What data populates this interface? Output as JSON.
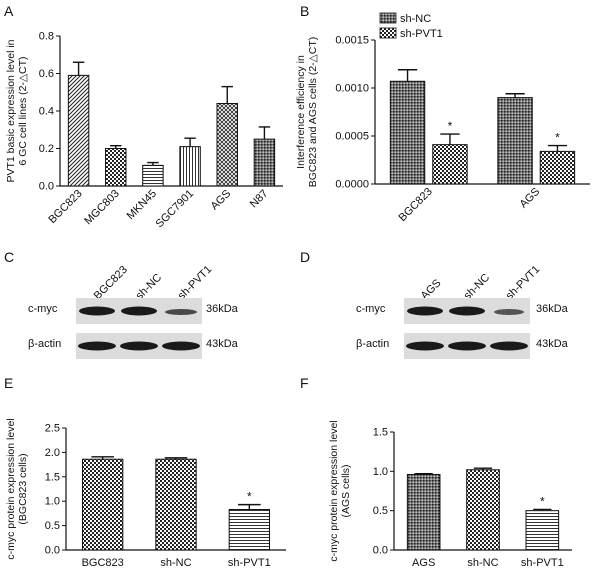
{
  "panels": {
    "a": {
      "letter": "A"
    },
    "b": {
      "letter": "B"
    },
    "c": {
      "letter": "C",
      "lanes": [
        "BGC823",
        "sh-NC",
        "sh-PVT1"
      ],
      "rows": [
        "c-myc",
        "β-actin"
      ],
      "sizes": [
        "36kDa",
        "43kDa"
      ]
    },
    "d": {
      "letter": "D",
      "lanes": [
        "AGS",
        "sh-NC",
        "sh-PVT1"
      ],
      "rows": [
        "c-myc",
        "β-actin"
      ],
      "sizes": [
        "36kDa",
        "43kDa"
      ]
    },
    "e": {
      "letter": "E"
    },
    "f": {
      "letter": "F"
    }
  },
  "chart_data": [
    {
      "id": "A",
      "type": "bar",
      "categories": [
        "BGC823",
        "MGC803",
        "MKN45",
        "SGC7901",
        "AGS",
        "N87"
      ],
      "values": [
        0.59,
        0.2,
        0.11,
        0.21,
        0.44,
        0.25
      ],
      "errors": [
        0.07,
        0.015,
        0.015,
        0.045,
        0.09,
        0.065
      ],
      "patterns": [
        "diag",
        "check",
        "hlines",
        "vlines",
        "cross",
        "dense"
      ],
      "ylabel": [
        "PVT1 basic expression level in",
        "6 GC cell lines (2-△CT)"
      ],
      "ylim": [
        0,
        0.8
      ],
      "yticks": [
        0.0,
        0.2,
        0.4,
        0.6,
        0.8
      ],
      "ytick_labels": [
        "0.0",
        "0.2",
        "0.4",
        "0.6",
        "0.8"
      ]
    },
    {
      "id": "B",
      "type": "bar",
      "categories": [
        "BGC823",
        "AGS"
      ],
      "series": [
        {
          "name": "sh-NC",
          "values": [
            0.00107,
            0.0009
          ],
          "errors": [
            0.00012,
            4e-05
          ],
          "pattern": "dense"
        },
        {
          "name": "sh-PVT1",
          "values": [
            0.00041,
            0.00034
          ],
          "errors": [
            0.00011,
            6e-05
          ],
          "pattern": "check"
        }
      ],
      "annotations": [
        "*",
        "*"
      ],
      "ylabel": [
        "Interference efficiency in",
        "BGC823 and AGS cells (2-△CT)"
      ],
      "ylim": [
        0,
        0.0015
      ],
      "yticks": [
        0,
        0.0005,
        0.001,
        0.0015
      ],
      "ytick_labels": [
        "0.0000",
        "0.0005",
        "0.0010",
        "0.0015"
      ]
    },
    {
      "id": "E",
      "type": "bar",
      "categories": [
        "BGC823",
        "sh-NC",
        "sh-PVT1"
      ],
      "values": [
        1.86,
        1.86,
        0.83
      ],
      "errors": [
        0.05,
        0.03,
        0.1
      ],
      "patterns": [
        "check",
        "check",
        "hlines"
      ],
      "annotations": [
        "",
        "",
        "*"
      ],
      "ylabel": [
        "c-myc protein expression level",
        "(BGC823 cells)"
      ],
      "ylim": [
        0,
        2.5
      ],
      "yticks": [
        0,
        0.5,
        1,
        1.5,
        2,
        2.5
      ],
      "ytick_labels": [
        "0.0",
        "0.5",
        "1.0",
        "1.5",
        "2.0",
        "2.5"
      ]
    },
    {
      "id": "F",
      "type": "bar",
      "categories": [
        "AGS",
        "sh-NC",
        "sh-PVT1"
      ],
      "values": [
        0.96,
        1.02,
        0.5
      ],
      "errors": [
        0.01,
        0.02,
        0.015
      ],
      "patterns": [
        "dense",
        "check",
        "hlines"
      ],
      "annotations": [
        "",
        "",
        "*"
      ],
      "ylabel": [
        "c-myc protein expression level",
        "(AGS cells)"
      ],
      "ylim": [
        0,
        1.5
      ],
      "yticks": [
        0,
        0.5,
        1,
        1.5
      ],
      "ytick_labels": [
        "0.0",
        "0.5",
        "1.0",
        "1.5"
      ]
    }
  ]
}
